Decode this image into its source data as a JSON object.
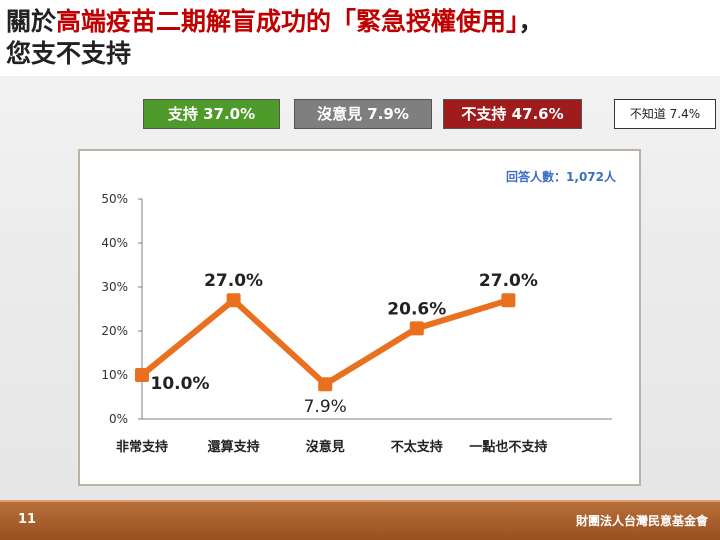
{
  "title": {
    "prefix": "關於",
    "highlight": "高端疫苗二期解盲成功的「緊急授權使用」",
    "suffix": "，",
    "line2": "您支不支持"
  },
  "legend": {
    "support": "支持 37.0%",
    "no_opinion": "沒意見 7.9%",
    "not_support": "不支持 47.6%",
    "unknown": "不知道 7.4%"
  },
  "footer": {
    "page_number": "11",
    "organization": "財團法人台灣民意基金會"
  },
  "colors": {
    "line": "#e8701e",
    "support": "#4e9a2a",
    "no_opinion": "#7f7f7f",
    "not_support": "#a01c1c",
    "respondents_text": "#3a6fc4"
  },
  "chart_data": {
    "type": "line",
    "categories": [
      "非常支持",
      "還算支持",
      "沒意見",
      "不太支持",
      "一點也不支持"
    ],
    "values": [
      10.0,
      27.0,
      7.9,
      20.6,
      27.0
    ],
    "data_labels": [
      "10.0%",
      "27.0%",
      "7.9%",
      "20.6%",
      "27.0%"
    ],
    "ylim": [
      0,
      50
    ],
    "yticks": [
      "0%",
      "10%",
      "20%",
      "30%",
      "40%",
      "50%"
    ],
    "grid": false,
    "annotation": "回答人數：1,072人"
  }
}
